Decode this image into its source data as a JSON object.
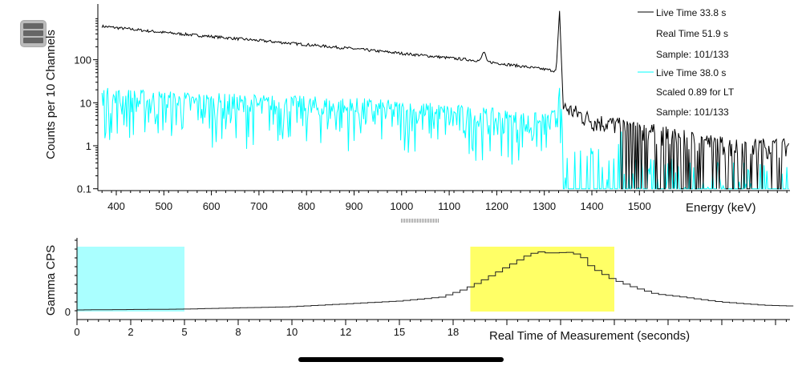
{
  "chart_data": [
    {
      "type": "line",
      "ylabel": "Counts per 10 Channels",
      "xlabel": "Energy (keV)",
      "yscale": "log",
      "ylim": [
        0.1,
        2000
      ],
      "xlim": [
        361,
        1817
      ],
      "xticks": [
        "400",
        "500",
        "600",
        "700",
        "800",
        "900",
        "1000",
        "1100",
        "1200",
        "1300",
        "1400",
        "1500"
      ],
      "xtick_values": [
        400,
        500,
        600,
        700,
        800,
        900,
        1000,
        1100,
        1200,
        1300,
        1400,
        1500
      ],
      "yticks": [
        "100",
        "10",
        "1",
        "0.1"
      ],
      "ytick_values": [
        100,
        10,
        1,
        0.1
      ],
      "legend_position": "top-right",
      "series": [
        {
          "name": "Live Time 33.8 s",
          "legend": [
            "Live Time 33.8 s",
            "Real Time 51.9 s",
            "Sample: 101/133"
          ],
          "color": "#000000",
          "envelope_kev": [
            370,
            500,
            700,
            900,
            1100,
            1165,
            1173,
            1180,
            1300,
            1325,
            1332,
            1340,
            1400,
            1500,
            1600,
            1700,
            1800
          ],
          "envelope_counts": [
            600,
            430,
            280,
            180,
            110,
            95,
            160,
            90,
            60,
            55,
            1300,
            8,
            4,
            2.5,
            1.5,
            1,
            1
          ]
        },
        {
          "name": "Live Time 38.0 s",
          "legend": [
            "Live Time 38.0 s",
            "Scaled 0.89 for LT",
            "Sample: 101/133"
          ],
          "color": "#00ffff",
          "envelope_kev": [
            370,
            600,
            900,
            1100,
            1300,
            1325,
            1332,
            1340,
            1450,
            1460,
            1470,
            1800
          ],
          "envelope_counts": [
            12,
            9,
            7,
            5,
            3,
            4,
            25,
            0.6,
            0.4,
            2,
            0.3,
            0.2
          ]
        }
      ]
    },
    {
      "type": "line",
      "ylabel": "Gamma CPS",
      "xlabel": "Real Time of Measurement (seconds)",
      "xlim": [
        0,
        33
      ],
      "xticks": [
        "0",
        "2",
        "5",
        "8",
        "10",
        "12",
        "15",
        "18"
      ],
      "xtick_values": [
        0,
        2.5,
        5,
        7.5,
        10,
        12.5,
        15,
        17.5
      ],
      "yticks": [
        "0"
      ],
      "regions": [
        {
          "from": 0,
          "to": 5,
          "color": "#aaffff"
        },
        {
          "from": 18.3,
          "to": 25,
          "color": "#ffff66"
        }
      ],
      "x": [
        0,
        5,
        10,
        15,
        17,
        18,
        18.5,
        19,
        20,
        21,
        21.5,
        22,
        23,
        23.5,
        24,
        25,
        26,
        27,
        28,
        30,
        32,
        33
      ],
      "values": [
        2,
        3,
        6,
        13,
        18,
        27,
        33,
        40,
        55,
        70,
        75,
        73,
        74,
        70,
        55,
        40,
        30,
        22,
        19,
        12,
        8,
        7
      ]
    }
  ]
}
